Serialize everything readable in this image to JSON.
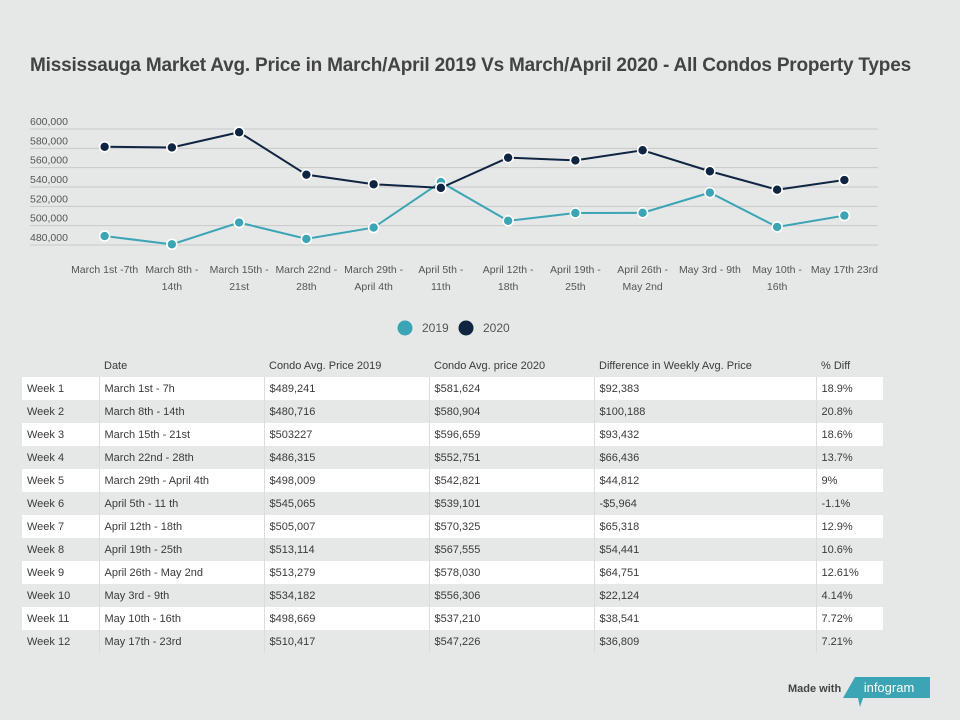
{
  "title": "Mississauga Market Avg. Price in March/April 2019 Vs March/April 2020 - All Condos Property Types",
  "chart_data": {
    "type": "line",
    "title": "Mississauga Market Avg. Price in March/April 2019 Vs March/April 2020 - All Condos Property Types",
    "xlabel": "",
    "ylabel": "",
    "categories": [
      [
        "March 1st -7th"
      ],
      [
        "March 8th -",
        "14th"
      ],
      [
        "March 15th -",
        "21st"
      ],
      [
        "March 22nd -",
        "28th"
      ],
      [
        "March 29th -",
        "April 4th"
      ],
      [
        "April 5th -",
        "11th"
      ],
      [
        "April 12th -",
        "18th"
      ],
      [
        "April 19th -",
        "25th"
      ],
      [
        "April 26th -",
        "May 2nd"
      ],
      [
        "May 3rd - 9th"
      ],
      [
        "May 10th -",
        "16th"
      ],
      [
        "May 17th 23rd"
      ]
    ],
    "y_ticks": [
      480000,
      500000,
      520000,
      540000,
      560000,
      580000,
      600000
    ],
    "y_tick_labels": [
      "480,000",
      "500,000",
      "520,000",
      "540,000",
      "560,000",
      "580,000",
      "600,000"
    ],
    "ylim": [
      470000,
      600000
    ],
    "grid": true,
    "legend_position": "bottom-center",
    "series": [
      {
        "name": "2019",
        "color": "#3ba5b5",
        "values": [
          489241,
          480716,
          503227,
          486315,
          498009,
          545065,
          505007,
          513114,
          513279,
          534182,
          498669,
          510417
        ]
      },
      {
        "name": "2020",
        "color": "#0f2542",
        "values": [
          581624,
          580904,
          596659,
          552751,
          542821,
          539101,
          570325,
          567555,
          578030,
          556306,
          537210,
          547226
        ]
      }
    ]
  },
  "legend": [
    {
      "label": "2019",
      "color": "#3ba5b5"
    },
    {
      "label": "2020",
      "color": "#0f2542"
    }
  ],
  "table": {
    "headers": [
      "",
      "Date",
      "Condo Avg. Price 2019",
      "Condo Avg. price 2020",
      "Difference in Weekly Avg. Price",
      "% Diff"
    ],
    "rows": [
      [
        "Week 1",
        "March 1st - 7h",
        "$489,241",
        "$581,624",
        "$92,383",
        "18.9%"
      ],
      [
        "Week 2",
        "March 8th - 14th",
        "$480,716",
        "$580,904",
        "$100,188",
        "20.8%"
      ],
      [
        "Week 3",
        "March 15th - 21st",
        "$503227",
        "$596,659",
        "$93,432",
        "18.6%"
      ],
      [
        "Week 4",
        "March 22nd - 28th",
        "$486,315",
        "$552,751",
        "$66,436",
        "13.7%"
      ],
      [
        "Week 5",
        "March 29th - April 4th",
        "$498,009",
        "$542,821",
        "$44,812",
        "9%"
      ],
      [
        "Week 6",
        "April 5th - 11 th",
        "$545,065",
        "$539,101",
        "-$5,964",
        "-1.1%"
      ],
      [
        "Week 7",
        "April 12th - 18th",
        "$505,007",
        "$570,325",
        "$65,318",
        "12.9%"
      ],
      [
        "Week 8",
        "April 19th - 25th",
        "$513,114",
        "$567,555",
        "$54,441",
        "10.6%"
      ],
      [
        "Week 9",
        "April 26th - May 2nd",
        "$513,279",
        "$578,030",
        "$64,751",
        "12.61%"
      ],
      [
        "Week 10",
        "May 3rd - 9th",
        "$534,182",
        "$556,306",
        "$22,124",
        "4.14%"
      ],
      [
        "Week 11",
        "May 10th - 16th",
        "$498,669",
        "$537,210",
        "$38,541",
        "7.72%"
      ],
      [
        "Week 12",
        "May 17th - 23rd",
        "$510,417",
        "$547,226",
        "$36,809",
        "7.21%"
      ]
    ]
  },
  "footer": {
    "made_with": "Made with",
    "brand": "infogram",
    "brand_color": "#3ba5b5"
  }
}
